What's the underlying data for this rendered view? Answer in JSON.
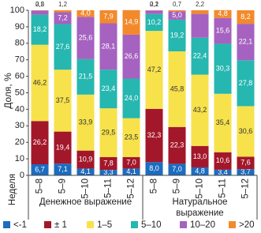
{
  "chart_data": {
    "type": "stacked-bar",
    "y_label": "Доля, %",
    "x_label": "Неделя",
    "categories": [
      "5–8",
      "5–9",
      "5–10",
      "5–11",
      "5–12",
      "5–8",
      "5–9",
      "5–10",
      "5–11",
      "5–12"
    ],
    "groups": [
      "Денежное выражение",
      "Натуральное выражение"
    ],
    "ylim": [
      0,
      100
    ],
    "yticks": [
      0,
      10,
      20,
      30,
      40,
      50,
      60,
      70,
      80,
      90,
      100
    ],
    "series": [
      {
        "name": "<-1",
        "color": "#1c6cc0",
        "values": [
          6.7,
          7.1,
          4.1,
          3.3,
          4.1,
          8.0,
          7.0,
          4.8,
          3.4,
          3.7
        ],
        "value_labels": [
          "6,7",
          "7,1",
          "4,1",
          "3,3",
          "4,1",
          "8,0",
          "7,0",
          "4,8",
          "3,4",
          "3,7"
        ]
      },
      {
        "name": "± 1",
        "color": "#a3172a",
        "values": [
          26.2,
          19.4,
          10.9,
          7.8,
          7.0,
          32.3,
          22.3,
          13.0,
          10.6,
          7.6
        ],
        "value_labels": [
          "26,2",
          "19,4",
          "10,9",
          "7,8",
          "7,0",
          "32,3",
          "22,3",
          "13,0",
          "10,6",
          "7,6"
        ]
      },
      {
        "name": "1–5",
        "color": "#f7e24c",
        "values": [
          46.2,
          37.5,
          33.9,
          29.5,
          23.5,
          47.2,
          45.8,
          43.2,
          35.4,
          30.6
        ],
        "value_labels": [
          "46,2",
          "37,5",
          "33,9",
          "29,5",
          "23,5",
          "47,2",
          "45,8",
          "43,2",
          "35,4",
          "30,6"
        ]
      },
      {
        "name": "5–10",
        "color": "#26b7b0",
        "values": [
          18.2,
          27.6,
          21.5,
          23.4,
          24.0,
          10.2,
          19.2,
          22.4,
          30.3,
          27.8
        ],
        "value_labels": [
          "18,2",
          "27,6",
          "21,5",
          "23,4",
          "24,0",
          "10,2",
          "19,2",
          "22,4",
          "30,3",
          "27,8"
        ]
      },
      {
        "name": "10–20",
        "color": "#a562c0",
        "values": [
          2.5,
          7.2,
          25.6,
          28.1,
          26.6,
          2.2,
          5.0,
          14.4,
          15.6,
          22.1
        ],
        "value_labels": [
          "2,5",
          "7,2",
          "25,6",
          "28,1",
          "26,6",
          "2,2",
          "5,0",
          null,
          "15,6",
          "22,1"
        ]
      },
      {
        "name": ">20",
        "color": "#f28a2c",
        "values": [
          0.2,
          1.2,
          4.0,
          7.9,
          14.9,
          0.1,
          0.7,
          2.2,
          4.8,
          8.2
        ],
        "value_labels": [
          "0,2",
          "1,2",
          "4,0",
          "7,9",
          "14,9",
          "0,1",
          "0,7",
          "2,2",
          "4,8",
          "8,2"
        ]
      }
    ]
  }
}
